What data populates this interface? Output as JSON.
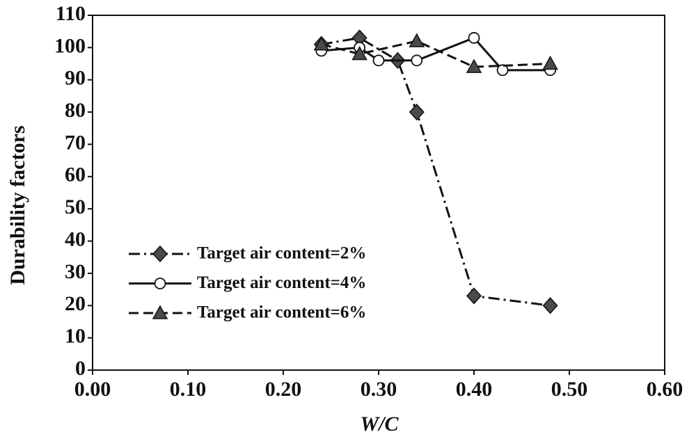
{
  "chart_data": {
    "type": "line",
    "x_label": "W/C",
    "y_label": "Durability factors",
    "xlim": [
      0,
      0.6
    ],
    "xticks": [
      {
        "value": 0,
        "label": "0.00"
      },
      {
        "value": 0.1,
        "label": "0.10"
      },
      {
        "value": 0.2,
        "label": "0.20"
      },
      {
        "value": 0.3,
        "label": "0.30"
      },
      {
        "value": 0.4,
        "label": "0.40"
      },
      {
        "value": 0.5,
        "label": "0.50"
      },
      {
        "value": 0.6,
        "label": "0.60"
      }
    ],
    "ylim": [
      0,
      110
    ],
    "yticks": [
      0,
      10,
      20,
      30,
      40,
      50,
      60,
      70,
      80,
      90,
      100,
      110
    ],
    "grid": false,
    "legend": "left",
    "series": [
      {
        "name": "Target air content=2%",
        "color": "#111111",
        "marker": "diamond",
        "dash": "dashdot",
        "x": [
          0.24,
          0.28,
          0.32,
          0.34,
          0.4,
          0.48
        ],
        "values": [
          101,
          103,
          96,
          80,
          23,
          20
        ]
      },
      {
        "name": "Target air content=4%",
        "color": "#111111",
        "marker": "circle",
        "dash": "solid",
        "x": [
          0.24,
          0.28,
          0.3,
          0.34,
          0.4,
          0.43,
          0.48
        ],
        "values": [
          99,
          100,
          96,
          96,
          103,
          93,
          93
        ]
      },
      {
        "name": "Target air content=6%",
        "color": "#111111",
        "marker": "triangle",
        "dash": "dashed",
        "x": [
          0.24,
          0.28,
          0.34,
          0.4,
          0.48
        ],
        "values": [
          101,
          98,
          102,
          94,
          95
        ]
      }
    ]
  }
}
